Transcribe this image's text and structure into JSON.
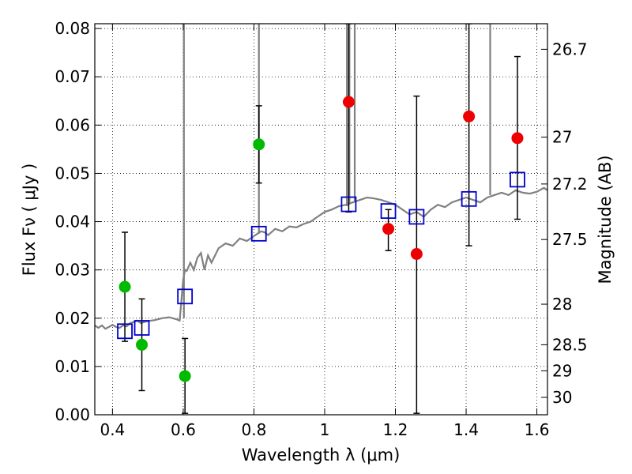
{
  "chart_data": {
    "type": "scatter",
    "xlabel": "Wavelength  λ (μm)",
    "ylabel": "Flux  Fν  ( μJy )",
    "y2label": "Magnitude (AB)",
    "xlim": [
      0.35,
      1.63
    ],
    "ylim": [
      0.0,
      0.081
    ],
    "grid": true,
    "x_ticks": [
      0.4,
      0.6,
      0.8,
      1.0,
      1.2,
      1.4,
      1.6
    ],
    "x_tick_labels": [
      "0.4",
      "0.6",
      "0.8",
      "1",
      "1.2",
      "1.4",
      "1.6"
    ],
    "y_ticks": [
      0.0,
      0.01,
      0.02,
      0.03,
      0.04,
      0.05,
      0.06,
      0.07,
      0.08
    ],
    "y_tick_labels": [
      "0.00",
      "0.01",
      "0.02",
      "0.03",
      "0.04",
      "0.05",
      "0.06",
      "0.07",
      "0.08"
    ],
    "y2_ticks": [
      {
        "label": "26.7",
        "flux": 0.0757
      },
      {
        "label": "27",
        "flux": 0.0575
      },
      {
        "label": "27.2",
        "flux": 0.0478
      },
      {
        "label": "27.5",
        "flux": 0.0363
      },
      {
        "label": "28",
        "flux": 0.0229
      },
      {
        "label": "28.5",
        "flux": 0.0145
      },
      {
        "label": "29",
        "flux": 0.0091
      },
      {
        "label": "30",
        "flux": 0.0036
      }
    ],
    "series": [
      {
        "name": "model spectrum",
        "kind": "line",
        "color": "#808080",
        "x": [
          0.35,
          0.36,
          0.37,
          0.38,
          0.39,
          0.4,
          0.41,
          0.42,
          0.43,
          0.44,
          0.45,
          0.46,
          0.47,
          0.48,
          0.49,
          0.5,
          0.52,
          0.54,
          0.56,
          0.58,
          0.59,
          0.6,
          0.605,
          0.61,
          0.62,
          0.63,
          0.64,
          0.65,
          0.66,
          0.67,
          0.68,
          0.7,
          0.72,
          0.74,
          0.76,
          0.78,
          0.8,
          0.81,
          0.82,
          0.83,
          0.84,
          0.86,
          0.88,
          0.9,
          0.92,
          0.94,
          0.96,
          0.98,
          1.0,
          1.02,
          1.04,
          1.06,
          1.08,
          1.1,
          1.12,
          1.14,
          1.16,
          1.18,
          1.2,
          1.22,
          1.24,
          1.26,
          1.28,
          1.3,
          1.32,
          1.34,
          1.36,
          1.38,
          1.4,
          1.42,
          1.44,
          1.46,
          1.48,
          1.5,
          1.52,
          1.54,
          1.56,
          1.58,
          1.6,
          1.62,
          1.63
        ],
        "y": [
          0.0185,
          0.018,
          0.0185,
          0.0178,
          0.0182,
          0.0186,
          0.0182,
          0.018,
          0.0185,
          0.0183,
          0.019,
          0.0192,
          0.0195,
          0.019,
          0.0192,
          0.0194,
          0.0196,
          0.02,
          0.0202,
          0.0198,
          0.0195,
          0.028,
          0.03,
          0.0298,
          0.0315,
          0.03,
          0.0325,
          0.0335,
          0.03,
          0.033,
          0.0315,
          0.0345,
          0.0355,
          0.035,
          0.0365,
          0.036,
          0.037,
          0.0375,
          0.038,
          0.0378,
          0.0372,
          0.0385,
          0.038,
          0.039,
          0.0388,
          0.0395,
          0.04,
          0.041,
          0.042,
          0.0425,
          0.0432,
          0.0435,
          0.044,
          0.0445,
          0.045,
          0.0448,
          0.0445,
          0.044,
          0.0435,
          0.0425,
          0.0415,
          0.042,
          0.041,
          0.0425,
          0.0435,
          0.043,
          0.044,
          0.0445,
          0.045,
          0.0445,
          0.044,
          0.045,
          0.0455,
          0.046,
          0.0455,
          0.0465,
          0.046,
          0.0458,
          0.0462,
          0.047,
          0.0465
        ]
      },
      {
        "name": "green points",
        "kind": "scatter",
        "color": "#00bb00",
        "points": [
          {
            "x": 0.435,
            "y": 0.0265,
            "lo": 0.0152,
            "hi": 0.0378
          },
          {
            "x": 0.483,
            "y": 0.0145,
            "lo": 0.005,
            "hi": 0.024
          },
          {
            "x": 0.605,
            "y": 0.008,
            "lo": 0.0003,
            "hi": 0.0158
          },
          {
            "x": 0.814,
            "y": 0.056,
            "lo": 0.048,
            "hi": 0.064
          }
        ]
      },
      {
        "name": "red points",
        "kind": "scatter",
        "color": "#ee0000",
        "points": [
          {
            "x": 1.068,
            "y": 0.0648,
            "lo": 0.042,
            "hi": 0.081
          },
          {
            "x": 1.18,
            "y": 0.0385,
            "lo": 0.034,
            "hi": 0.0425
          },
          {
            "x": 1.26,
            "y": 0.0333,
            "lo": 0.0003,
            "hi": 0.066
          },
          {
            "x": 1.408,
            "y": 0.0618,
            "lo": 0.035,
            "hi": 0.081
          },
          {
            "x": 1.545,
            "y": 0.0573,
            "lo": 0.0405,
            "hi": 0.0742
          }
        ]
      },
      {
        "name": "blue model squares",
        "kind": "scatter",
        "color": "#0000cc",
        "points": [
          {
            "x": 0.435,
            "y": 0.0173
          },
          {
            "x": 0.483,
            "y": 0.018
          },
          {
            "x": 0.605,
            "y": 0.0245
          },
          {
            "x": 0.814,
            "y": 0.0375
          },
          {
            "x": 1.068,
            "y": 0.0436
          },
          {
            "x": 1.18,
            "y": 0.0422
          },
          {
            "x": 1.26,
            "y": 0.041
          },
          {
            "x": 1.408,
            "y": 0.0447
          },
          {
            "x": 1.545,
            "y": 0.0487
          }
        ]
      }
    ]
  }
}
